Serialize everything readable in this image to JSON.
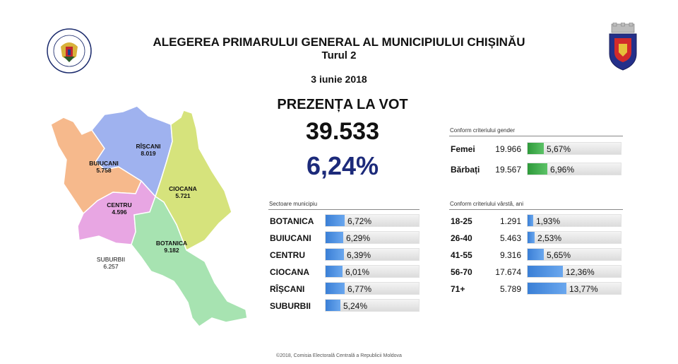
{
  "header": {
    "title": "ALEGEREA PRIMARULUI GENERAL AL MUNICIPIULUI CHIȘINĂU",
    "subtitle": "Turul 2",
    "date": "3 iunie 2018"
  },
  "logos": {
    "left_text_top": "REPUBLICA MOLDOVA",
    "left_text_bottom": "COMISIA ELECTORALĂ CENTRALĂ"
  },
  "turnout": {
    "heading": "PREZENȚA LA VOT",
    "total": "39.533",
    "percent": "6,24%"
  },
  "map": {
    "districts": [
      {
        "name": "RÎȘCANI",
        "value": "8.019",
        "color": "#9fb2ef"
      },
      {
        "name": "BUIUCANI",
        "value": "5.758",
        "color": "#f6b98c"
      },
      {
        "name": "CIOCANA",
        "value": "5.721",
        "color": "#d6e37c"
      },
      {
        "name": "CENTRU",
        "value": "4.596",
        "color": "#e8a6e3"
      },
      {
        "name": "BOTANICA",
        "value": "9.182",
        "color": "#a7e3b1"
      },
      {
        "name": "SUBURBII",
        "value": "6.257",
        "color": "#ffffff"
      }
    ]
  },
  "sectors": {
    "title": "Sectoare municipiu",
    "rows": [
      {
        "label": "BOTANICA",
        "value": "6,72%",
        "fraction": 0.0672
      },
      {
        "label": "BUIUCANI",
        "value": "6,29%",
        "fraction": 0.0629
      },
      {
        "label": "CENTRU",
        "value": "6,39%",
        "fraction": 0.0639
      },
      {
        "label": "CIOCANA",
        "value": "6,01%",
        "fraction": 0.0601
      },
      {
        "label": "RÎȘCANI",
        "value": "6,77%",
        "fraction": 0.0677
      },
      {
        "label": "SUBURBII",
        "value": "5,24%",
        "fraction": 0.0524
      }
    ]
  },
  "gender": {
    "title": "Conform criteriului gender",
    "rows": [
      {
        "label": "Femei",
        "count": "19.966",
        "value": "5,67%",
        "fraction": 0.0567
      },
      {
        "label": "Bărbați",
        "count": "19.567",
        "value": "6,96%",
        "fraction": 0.0696
      }
    ]
  },
  "age": {
    "title": "Conform criteriului vârstă, ani",
    "rows": [
      {
        "label": "18-25",
        "count": "1.291",
        "value": "1,93%",
        "fraction": 0.0193
      },
      {
        "label": "26-40",
        "count": "5.463",
        "value": "2,53%",
        "fraction": 0.0253
      },
      {
        "label": "41-55",
        "count": "9.316",
        "value": "5,65%",
        "fraction": 0.0565
      },
      {
        "label": "56-70",
        "count": "17.674",
        "value": "12,36%",
        "fraction": 0.1236
      },
      {
        "label": "71+",
        "count": "5.789",
        "value": "13,77%",
        "fraction": 0.1377
      }
    ]
  },
  "footer": {
    "text": "©2018, Comisia Electorală Centrală a Republicii Moldova"
  },
  "colors": {
    "bar_blue": "#3a7fd6",
    "bar_green": "#2e9a3a",
    "percent_text": "#1c2a7a"
  }
}
